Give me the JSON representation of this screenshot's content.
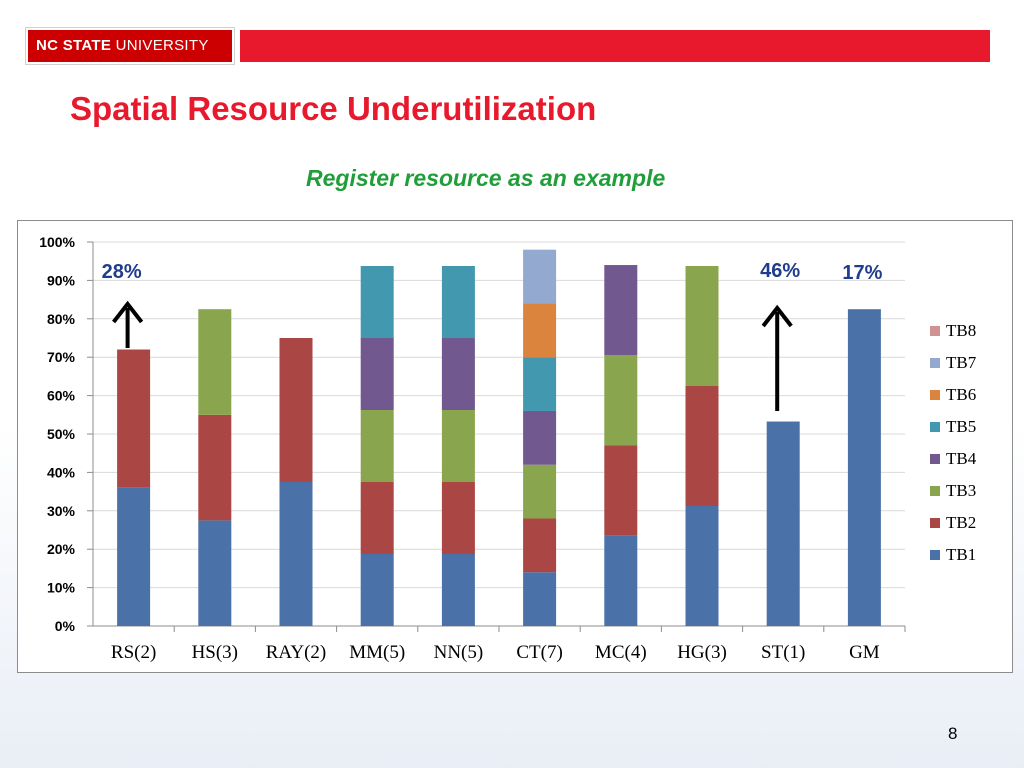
{
  "header": {
    "logo_text_bold": "NC STATE",
    "logo_text_light": "UNIVERSITY",
    "logo_color": "#cc0000",
    "bar_color": "#e8192c"
  },
  "slide": {
    "title": "Spatial Resource Underutilization",
    "subtitle": "Register resource as an example",
    "page_number": "8"
  },
  "chart_data": {
    "type": "bar",
    "stacked": true,
    "categories": [
      "RS(2)",
      "HS(3)",
      "RAY(2)",
      "MM(5)",
      "NN(5)",
      "CT(7)",
      "MC(4)",
      "HG(3)",
      "ST(1)",
      "GM"
    ],
    "series": [
      {
        "name": "TB1",
        "color": "#4a72a8",
        "values": [
          36,
          27.5,
          37.5,
          18.75,
          18.75,
          14,
          23.5,
          31.25,
          53.25,
          82.5
        ]
      },
      {
        "name": "TB2",
        "color": "#aa4644",
        "values": [
          36,
          27.5,
          37.5,
          18.75,
          18.75,
          14,
          23.5,
          31.25,
          0,
          0
        ]
      },
      {
        "name": "TB3",
        "color": "#89a54e",
        "values": [
          0,
          27.5,
          0,
          18.75,
          18.75,
          14,
          23.5,
          31.25,
          0,
          0
        ]
      },
      {
        "name": "TB4",
        "color": "#71588f",
        "values": [
          0,
          0,
          0,
          18.75,
          18.75,
          14,
          23.5,
          0,
          0,
          0
        ]
      },
      {
        "name": "TB5",
        "color": "#4198af",
        "values": [
          0,
          0,
          0,
          18.75,
          18.75,
          14,
          0,
          0,
          0,
          0
        ]
      },
      {
        "name": "TB6",
        "color": "#db843d",
        "values": [
          0,
          0,
          0,
          0,
          0,
          14,
          0,
          0,
          0,
          0
        ]
      },
      {
        "name": "TB7",
        "color": "#93a9cf",
        "values": [
          0,
          0,
          0,
          0,
          0,
          14,
          0,
          0,
          0,
          0
        ]
      },
      {
        "name": "TB8",
        "color": "#d19392",
        "values": [
          0,
          0,
          0,
          0,
          0,
          0,
          0,
          0,
          0,
          0
        ]
      }
    ],
    "y_ticks": [
      "0%",
      "10%",
      "20%",
      "30%",
      "40%",
      "50%",
      "60%",
      "70%",
      "80%",
      "90%",
      "100%"
    ],
    "ylim": [
      0,
      100
    ],
    "grid": true,
    "legend_position": "right",
    "annotations": [
      {
        "text": "28%",
        "category": "RS(2)",
        "arrow": true,
        "color": "#1f3d8c"
      },
      {
        "text": "46%",
        "category": "ST(1)",
        "arrow": true,
        "color": "#1f3d8c"
      },
      {
        "text": "17%",
        "category": "GM",
        "arrow": false,
        "color": "#1f3d8c"
      }
    ]
  }
}
